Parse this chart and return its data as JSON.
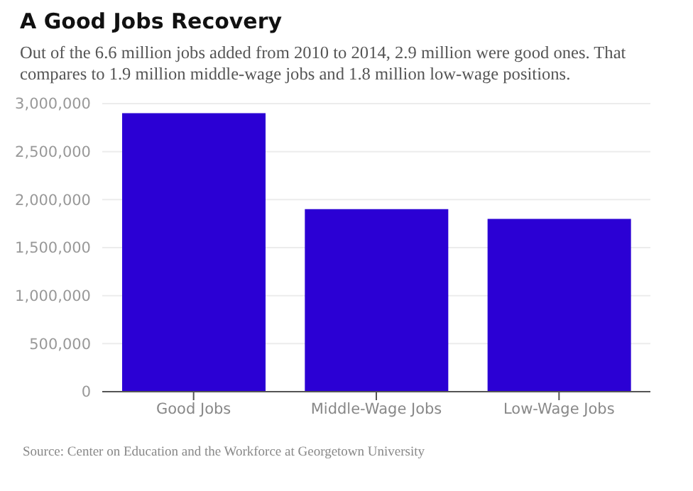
{
  "chart_data": {
    "type": "bar",
    "title": "A Good Jobs Recovery",
    "subtitle": "Out of the 6.6 million jobs added from 2010 to 2014, 2.9 million were good ones. That compares to 1.9 million middle-wage jobs and 1.8 million low-wage positions.",
    "categories": [
      "Good Jobs",
      "Middle-Wage Jobs",
      "Low-Wage Jobs"
    ],
    "values": [
      2900000,
      1900000,
      1800000
    ],
    "color": "#2b00d4",
    "ylim": [
      0,
      3000000
    ],
    "yticks": [
      {
        "value": 0,
        "label": "0"
      },
      {
        "value": 500000,
        "label": "500,000"
      },
      {
        "value": 1000000,
        "label": "1,000,000"
      },
      {
        "value": 1500000,
        "label": "1,500,000"
      },
      {
        "value": 2000000,
        "label": "2,000,000"
      },
      {
        "value": 2500000,
        "label": "2,500,000"
      },
      {
        "value": 3000000,
        "label": "3,000,000"
      }
    ],
    "grid": "y",
    "legend": false,
    "annotations": [
      "Source: Center on Education and the Workforce at Georgetown University"
    ]
  }
}
